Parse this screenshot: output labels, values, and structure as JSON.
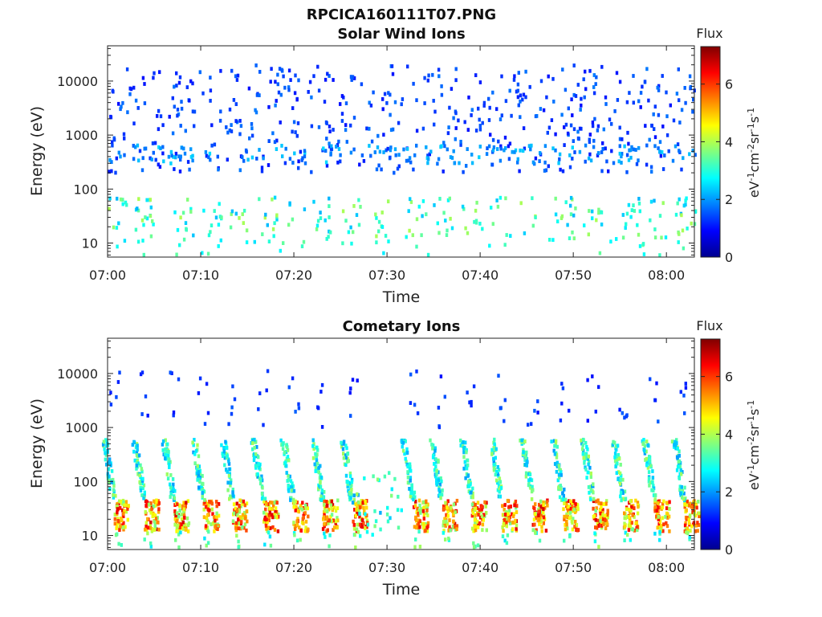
{
  "figure": {
    "title": "RPCICA160111T07.PNG"
  },
  "colorbar": {
    "title": "Flux",
    "label_parts": [
      "eV",
      "-1",
      "cm",
      "-2",
      "sr",
      "-1",
      "s",
      "-1"
    ],
    "ticks": [
      "0",
      "2",
      "4",
      "6"
    ],
    "range": [
      0,
      7.3
    ],
    "colormap": "jet"
  },
  "chart_data": [
    {
      "type": "heatmap",
      "title": "Solar Wind Ions",
      "xlabel": "Time",
      "ylabel": "Energy (eV)",
      "x_ticks": [
        "07:00",
        "07:10",
        "07:20",
        "07:30",
        "07:40",
        "07:50",
        "08:00"
      ],
      "y_ticks": [
        "10",
        "100",
        "1000",
        "10000"
      ],
      "x_range_minutes": [
        0,
        63
      ],
      "y_range_eV": [
        5.5,
        45000
      ],
      "y_scale": "log",
      "color_scale": [
        0,
        7.3
      ],
      "features": [
        {
          "energy_band_eV": [
            200,
            20000
          ],
          "flux_typical": 1.2,
          "description": "sparse"
        },
        {
          "energy_band_eV": [
            300,
            700
          ],
          "flux_typical": 2.0,
          "description": "denser after 07:40"
        },
        {
          "energy_band_eV": [
            12,
            60
          ],
          "flux_typical": 3.0,
          "description": "periodic clusters"
        }
      ]
    },
    {
      "type": "heatmap",
      "title": "Cometary Ions",
      "xlabel": "Time",
      "ylabel": "Energy (eV)",
      "x_ticks": [
        "07:00",
        "07:10",
        "07:20",
        "07:30",
        "07:40",
        "07:50",
        "08:00"
      ],
      "y_ticks": [
        "10",
        "100",
        "1000",
        "10000"
      ],
      "x_range_minutes": [
        0,
        63
      ],
      "y_range_eV": [
        5.5,
        45000
      ],
      "y_scale": "log",
      "color_scale": [
        0,
        7.3
      ],
      "burst_times_minutes": [
        0.6,
        3.8,
        7.0,
        10.2,
        13.3,
        16.6,
        19.8,
        23.0,
        26.2,
        29.4,
        32.7,
        35.8,
        39.0,
        42.2,
        45.5,
        48.8,
        52.0,
        55.3,
        58.6,
        61.8
      ],
      "features": [
        {
          "energy_band_eV": [
            12,
            45
          ],
          "flux_peak": 6.5,
          "description": "intense low-energy bursts"
        },
        {
          "energy_band_eV": [
            45,
            600
          ],
          "flux_typical": 3.0,
          "description": "burst tails"
        },
        {
          "energy_band_eV": [
            1000,
            12000
          ],
          "flux_typical": 1.2,
          "description": "sparse high-energy"
        }
      ]
    }
  ]
}
